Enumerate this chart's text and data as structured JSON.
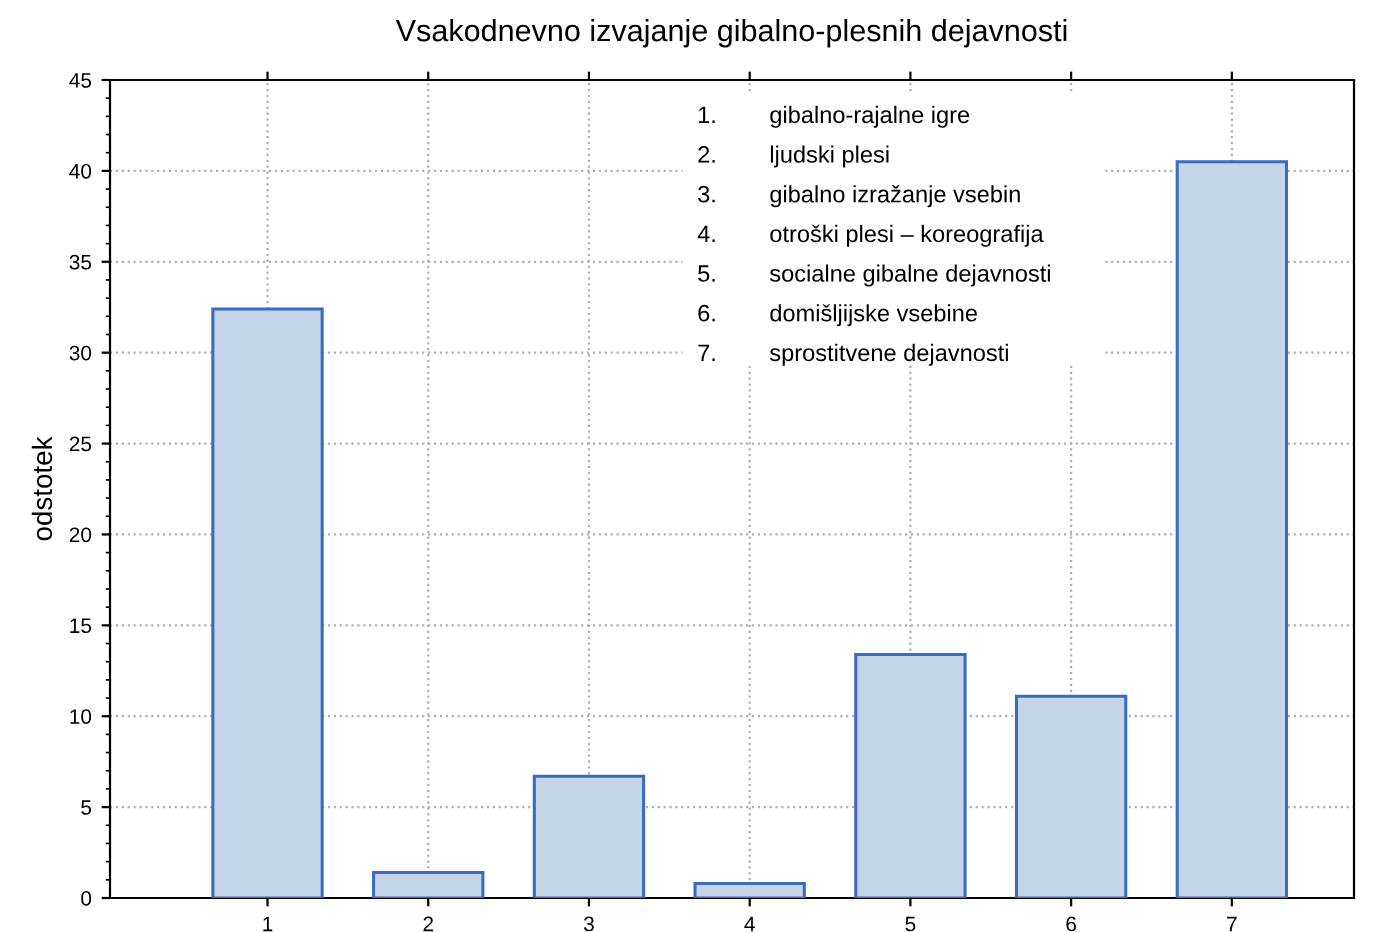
{
  "chart_data": {
    "type": "bar",
    "title": "Vsakodnevno izvajanje gibalno-plesnih dejavnosti",
    "ylabel": "odstotek",
    "categories": [
      "1",
      "2",
      "3",
      "4",
      "5",
      "6",
      "7"
    ],
    "values": [
      32.4,
      1.4,
      6.7,
      0.8,
      13.4,
      11.1,
      40.5
    ],
    "color": "#c5d4e8",
    "ylim": [
      0,
      45
    ],
    "yticks": [
      0,
      5,
      10,
      15,
      20,
      25,
      30,
      35,
      40,
      45
    ],
    "grid": true,
    "annotations": [
      "1. gibalno-rajalne igre",
      "2. ljudski plesi",
      "3. gibalno izražanje vsebin",
      "4. otroški plesi – koreografija",
      "5. socialne gibalne dejavnosti",
      "6. domišljijske vsebine",
      "7. sprostitvene dejavnosti"
    ]
  }
}
